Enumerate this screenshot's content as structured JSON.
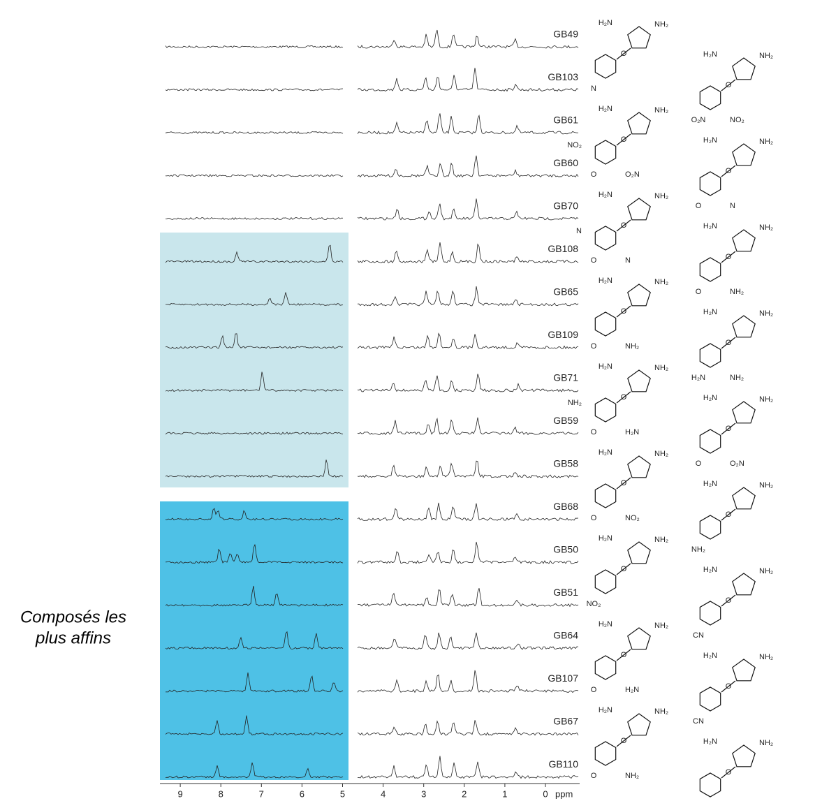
{
  "rows": [
    {
      "label": "GB49"
    },
    {
      "label": "GB103"
    },
    {
      "label": "GB61"
    },
    {
      "label": "GB60"
    },
    {
      "label": "GB70"
    },
    {
      "label": "GB108"
    },
    {
      "label": "GB65"
    },
    {
      "label": "GB109"
    },
    {
      "label": "GB71"
    },
    {
      "label": "GB59"
    },
    {
      "label": "GB58"
    },
    {
      "label": "GB68"
    },
    {
      "label": "GB50"
    },
    {
      "label": "GB51"
    },
    {
      "label": "GB64"
    },
    {
      "label": "GB107"
    },
    {
      "label": "GB67"
    },
    {
      "label": "GB110"
    }
  ],
  "structures": [
    {
      "labels": [
        "H₂N",
        "NH₂",
        "O",
        "N"
      ]
    },
    {
      "labels": [
        "H₂N",
        "NH₂",
        "O",
        "O₂N",
        "NO₂"
      ]
    },
    {
      "labels": [
        "H₂N",
        "NH₂",
        "O",
        "O",
        "O₂N",
        "NO₂"
      ]
    },
    {
      "labels": [
        "H₂N",
        "NH₂",
        "O",
        "O",
        "N"
      ]
    },
    {
      "labels": [
        "H₂N",
        "NH₂",
        "O",
        "O",
        "N",
        "N"
      ]
    },
    {
      "labels": [
        "H₂N",
        "NH₂",
        "O",
        "O",
        "NH₂"
      ]
    },
    {
      "labels": [
        "H₂N",
        "NH₂",
        "O",
        "O",
        "NH₂"
      ]
    },
    {
      "labels": [
        "H₂N",
        "NH₂",
        "O",
        "H₂N",
        "NH₂"
      ]
    },
    {
      "labels": [
        "H₂N",
        "NH₂",
        "O",
        "O",
        "H₂N",
        "NH₂"
      ]
    },
    {
      "labels": [
        "H₂N",
        "NH₂",
        "O",
        "O",
        "O₂N"
      ]
    },
    {
      "labels": [
        "H₂N",
        "NH₂",
        "O",
        "O",
        "NO₂"
      ]
    },
    {
      "labels": [
        "H₂N",
        "NH₂",
        "O",
        "NH₂"
      ]
    },
    {
      "labels": [
        "H₂N",
        "NH₂",
        "O",
        "NO₂"
      ]
    },
    {
      "labels": [
        "H₂N",
        "NH₂",
        "O",
        "CN"
      ]
    },
    {
      "labels": [
        "H₂N",
        "NH₂",
        "O",
        "O",
        "H₂N"
      ]
    },
    {
      "labels": [
        "H₂N",
        "NH₂",
        "O",
        "CN"
      ]
    },
    {
      "labels": [
        "H₂N",
        "NH₂",
        "O",
        "O",
        "NH₂"
      ]
    },
    {
      "labels": [
        "H₂N",
        "NH₂",
        "O",
        "H₂N",
        "O"
      ]
    }
  ],
  "side_note": {
    "lines": [
      "Composés les",
      "plus affins"
    ]
  },
  "axis": {
    "ticks": [
      9,
      8,
      7,
      6,
      5,
      4,
      3,
      2,
      1,
      0
    ],
    "unit": "ppm"
  }
}
